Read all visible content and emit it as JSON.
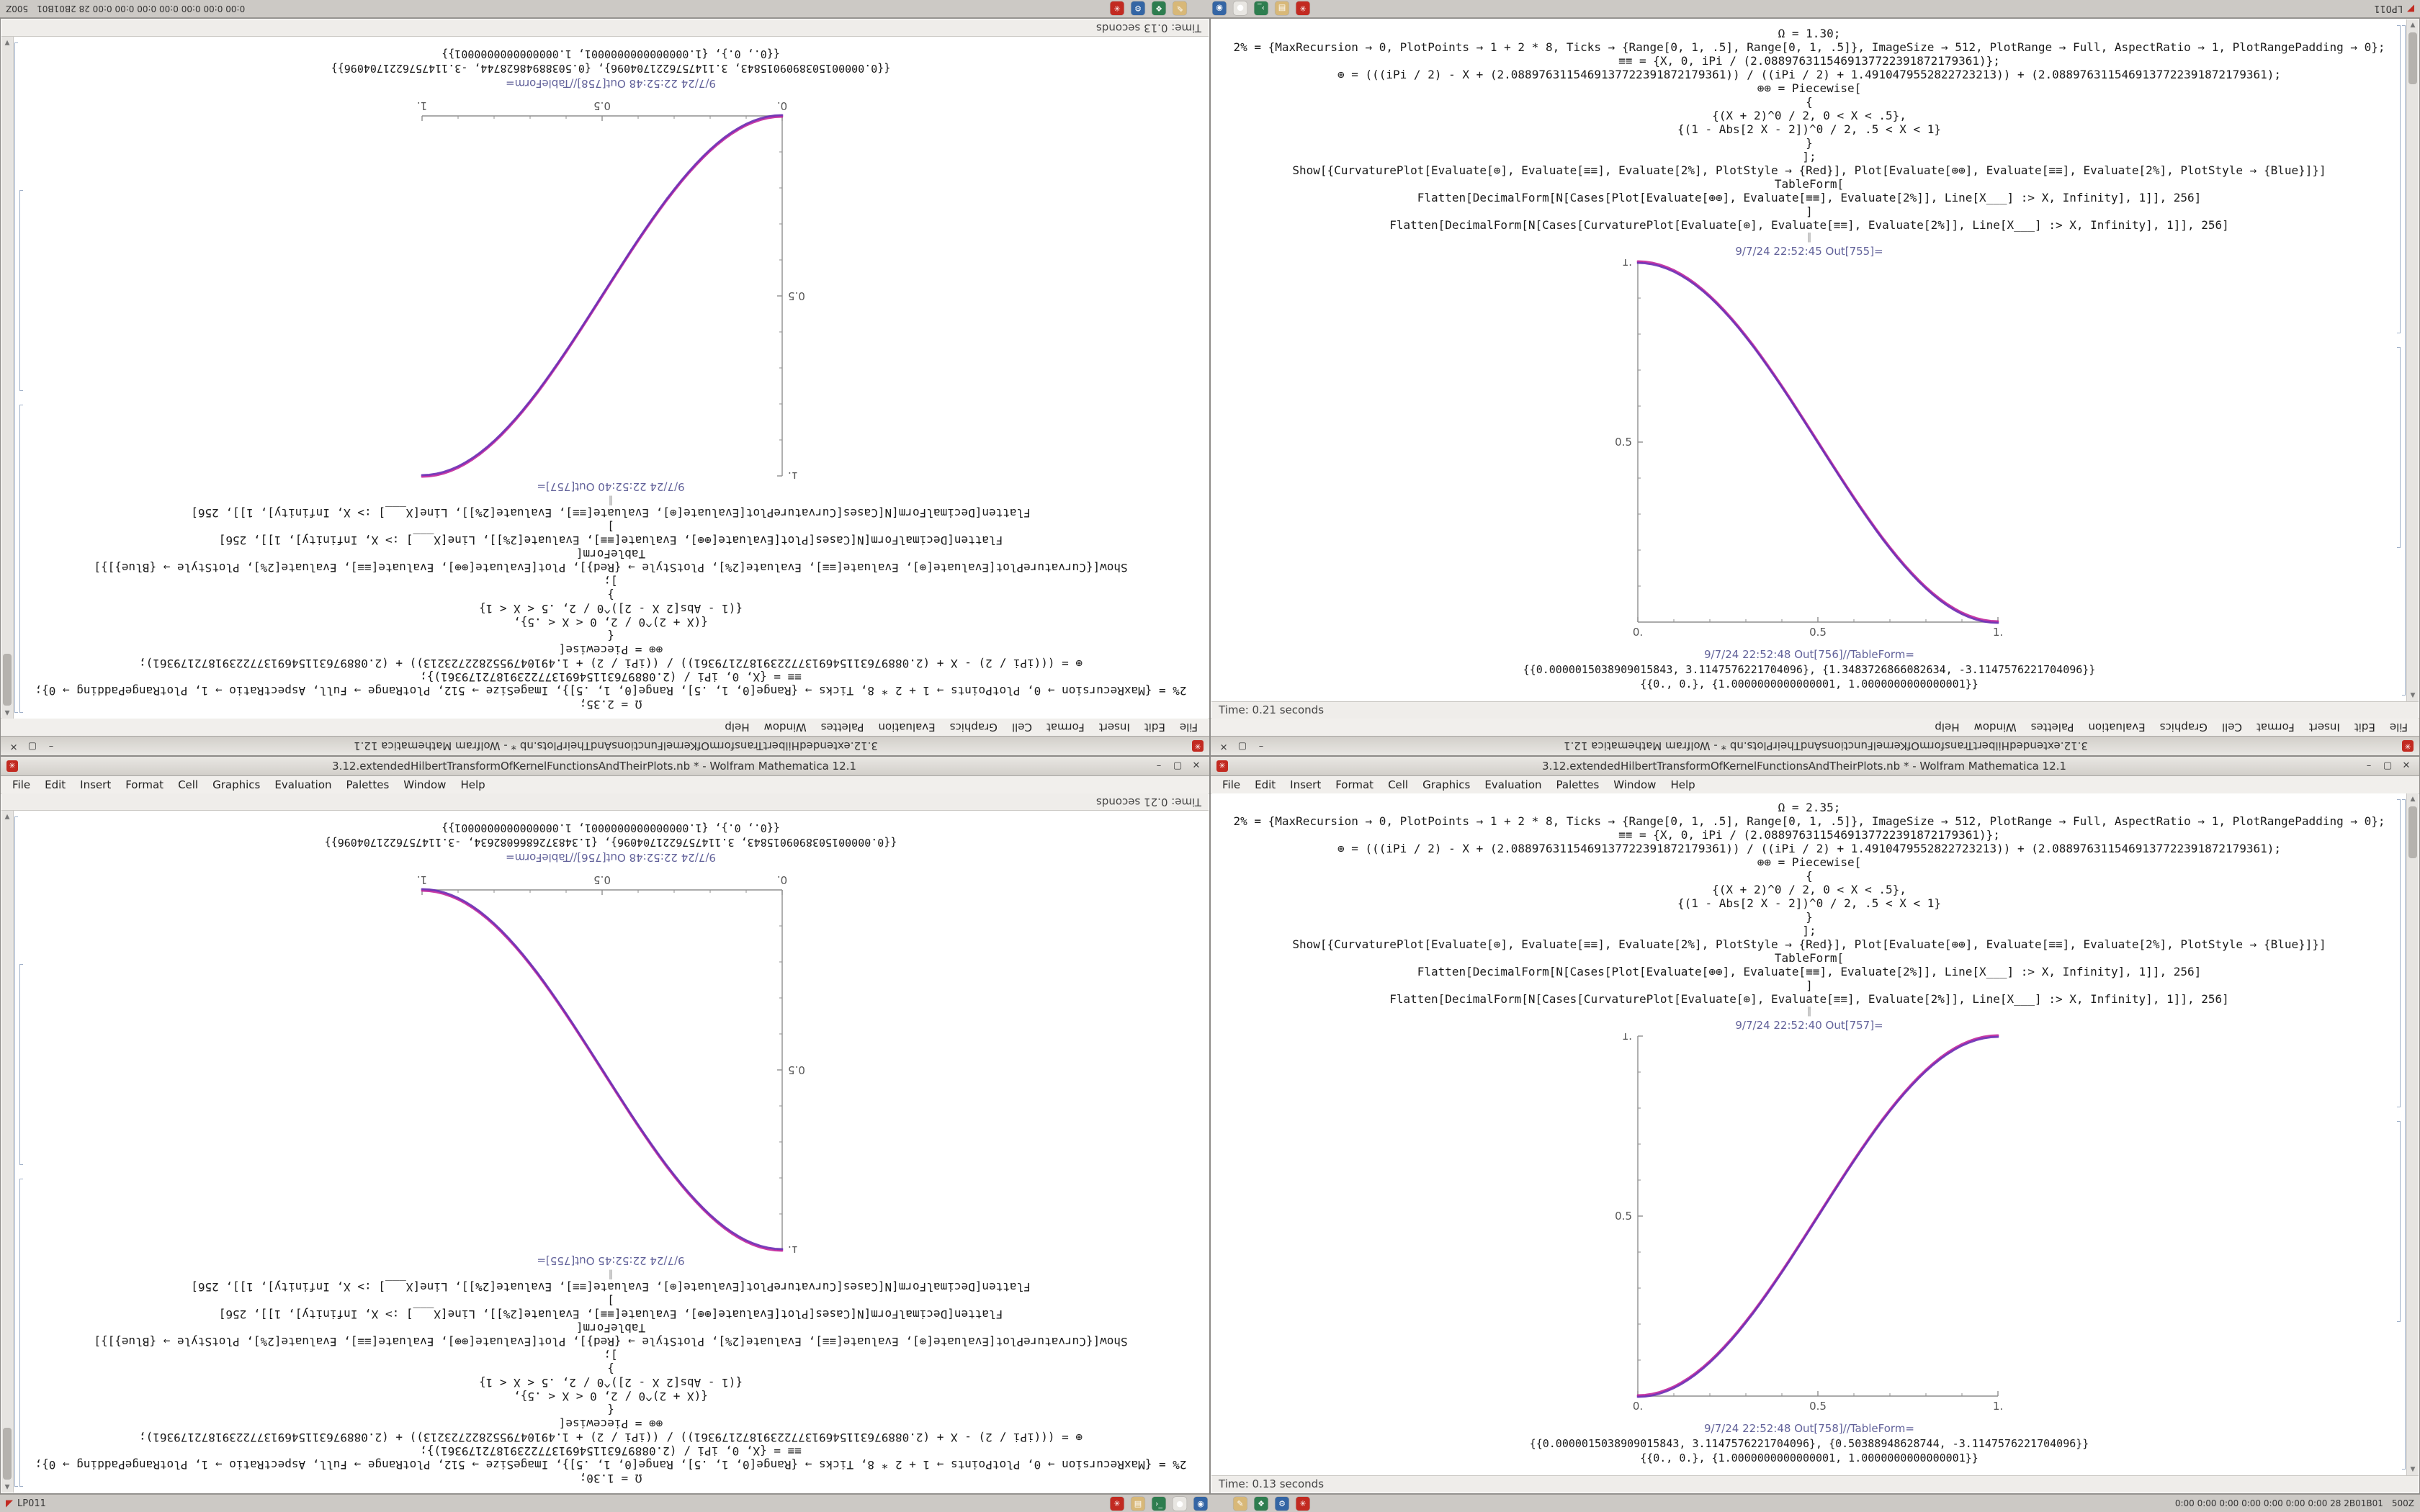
{
  "desktop": {
    "window_title": "3.12.extendedHilbertTransformOfKernelFunctionsAndTheirPlots.nb * - Wolfram Mathematica 12.1",
    "menu": [
      "File",
      "Edit",
      "Insert",
      "Format",
      "Cell",
      "Graphics",
      "Evaluation",
      "Palettes",
      "Window",
      "Help"
    ],
    "buttons": {
      "minimize": "–",
      "maximize": "▢",
      "close": "✕"
    },
    "scroll": {
      "up": "▲",
      "down": "▼"
    },
    "taskbar": {
      "left_label": "LP011",
      "tray_text": "0:00 0:00 0:00 0:00 0:00 0:00 0:00 28 2B01B01",
      "clock": "500Z",
      "icons": [
        {
          "name": "mathematica-icon",
          "color": "#c22a21",
          "glyph": "✳"
        },
        {
          "name": "files-icon",
          "color": "#d8b878",
          "glyph": "▤"
        },
        {
          "name": "terminal-icon",
          "color": "#2e7d4f",
          "glyph": "›_"
        },
        {
          "name": "media-player-icon",
          "color": "#e8e6e2",
          "glyph": "●"
        },
        {
          "name": "browser-icon",
          "color": "#3465a4",
          "glyph": "◉"
        },
        {
          "name": "editor-icon",
          "color": "#d8b878",
          "glyph": "✎"
        },
        {
          "name": "chat-icon",
          "color": "#2e7d4f",
          "glyph": "❖"
        },
        {
          "name": "settings-icon",
          "color": "#3465a4",
          "glyph": "⚙"
        },
        {
          "name": "mathematica-alt-icon",
          "color": "#c22a21",
          "glyph": "✳"
        }
      ]
    }
  },
  "notebook_left": {
    "status": "Time: 0.21 seconds",
    "separator": "‖",
    "input_lines": [
      "Ω = 1.30;",
      "2% = {MaxRecursion → 0, PlotPoints → 1 + 2 * 8, Ticks → {Range[0, 1, .5], Range[0, 1, .5]}, ImageSize → 512, PlotRange → Full, AspectRatio → 1, PlotRangePadding → 0};",
      "≡≡ = {X, 0, iPi / (2.0889763115469137722391872179361)};",
      "⊕ = (((iPi / 2) - X + (2.0889763115469137722391872179361)) / ((iPi / 2) + 1.4910479552822723213)) + (2.0889763115469137722391872179361);",
      "⊕⊕ = Piecewise[",
      "{",
      "{(X + 2)^0 / 2, 0 < X < .5},",
      "{(1 - Abs[2 X - 2])^0 / 2, .5 < X < 1}",
      "}",
      "];",
      "Show[{CurvaturePlot[Evaluate[⊕], Evaluate[≡≡], Evaluate[2%], PlotStyle → {Red}], Plot[Evaluate[⊕⊕], Evaluate[≡≡], Evaluate[2%], PlotStyle → {Blue}]}]",
      "TableForm[",
      "Flatten[DecimalForm[N[Cases[Plot[Evaluate[⊕⊕], Evaluate[≡≡], Evaluate[2%]], Line[X___] :> X, Infinity], 1]], 256]",
      "]",
      "Flatten[DecimalForm[N[Cases[CurvaturePlot[Evaluate[⊕], Evaluate[≡≡], Evaluate[2%]], Line[X___] :> X, Infinity], 1]], 256]"
    ],
    "out_plot_label": "9/7/24 22:52:45 Out[755]=",
    "out_table_label": "9/7/24 22:52:48 Out[756]//TableForm=",
    "table_rows": [
      "{{0.0000015038909015843, 3.1147576221704096}, {1.3483726866082634, -3.1147576221704096}}",
      "{{0., 0.}, {1.0000000000000001, 1.0000000000000001}}"
    ],
    "chart_data": {
      "type": "line",
      "title": "",
      "xlabel": "",
      "ylabel": "",
      "x_range": [
        0,
        1
      ],
      "y_range": [
        0,
        1
      ],
      "x_ticks": [
        "0.",
        "0.5",
        "1."
      ],
      "y_ticks": [
        "0.5",
        "1."
      ],
      "direction": "descending",
      "curve": "smoothstep",
      "grid": false,
      "legend": "none",
      "series": [
        {
          "name": "CurvaturePlot",
          "color": "#c0259c"
        },
        {
          "name": "Plot",
          "color": "#6a2bb4"
        }
      ]
    }
  },
  "notebook_right": {
    "status": "Time: 0.13 seconds",
    "separator": "‖",
    "input_lines": [
      "Ω = 2.35;",
      "2% = {MaxRecursion → 0, PlotPoints → 1 + 2 * 8, Ticks → {Range[0, 1, .5], Range[0, 1, .5]}, ImageSize → 512, PlotRange → Full, AspectRatio → 1, PlotRangePadding → 0};",
      "≡≡ = {X, 0, iPi / (2.0889763115469137722391872179361)};",
      "⊕ = (((iPi / 2) - X + (2.0889763115469137722391872179361)) / ((iPi / 2) + 1.4910479552822723213)) + (2.0889763115469137722391872179361);",
      "⊕⊕ = Piecewise[",
      "{",
      "{(X + 2)^0 / 2, 0 < X < .5},",
      "{(1 - Abs[2 X - 2])^0 / 2, .5 < X < 1}",
      "}",
      "];",
      "Show[{CurvaturePlot[Evaluate[⊕], Evaluate[≡≡], Evaluate[2%], PlotStyle → {Red}], Plot[Evaluate[⊕⊕], Evaluate[≡≡], Evaluate[2%], PlotStyle → {Blue}]}]",
      "TableForm[",
      "Flatten[DecimalForm[N[Cases[Plot[Evaluate[⊕⊕], Evaluate[≡≡], Evaluate[2%]], Line[X___] :> X, Infinity], 1]], 256]",
      "]",
      "Flatten[DecimalForm[N[Cases[CurvaturePlot[Evaluate[⊕], Evaluate[≡≡], Evaluate[2%]], Line[X___] :> X, Infinity], 1]], 256]"
    ],
    "out_plot_label": "9/7/24 22:52:40 Out[757]=",
    "out_table_label": "9/7/24 22:52:48 Out[758]//TableForm=",
    "table_rows": [
      "{{0.0000015038909015843, 3.1147576221704096}, {0.50388948628744, -3.1147576221704096}}",
      "{{0., 0.}, {1.0000000000000001, 1.0000000000000001}}"
    ],
    "chart_data": {
      "type": "line",
      "title": "",
      "xlabel": "",
      "ylabel": "",
      "x_range": [
        0,
        1
      ],
      "y_range": [
        0,
        1
      ],
      "x_ticks": [
        "0.",
        "0.5",
        "1."
      ],
      "y_ticks": [
        "0.5",
        "1."
      ],
      "direction": "ascending",
      "curve": "smoothstep",
      "grid": false,
      "legend": "none",
      "series": [
        {
          "name": "CurvaturePlot",
          "color": "#c0259c"
        },
        {
          "name": "Plot",
          "color": "#6a2bb4"
        }
      ]
    }
  }
}
